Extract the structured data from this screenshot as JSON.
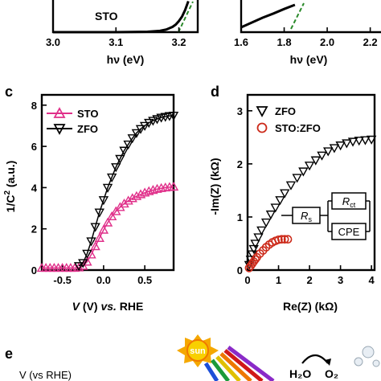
{
  "panel_labels": {
    "c": "c",
    "d": "d",
    "e": "e"
  },
  "colors": {
    "sto": "#e0308a",
    "zfo": "#000000",
    "stozfo": "#cc2a1a",
    "fit": "#2a8a2a"
  },
  "top_left": {
    "curve_label": "STO",
    "xlabel": "hν (eV)",
    "xticks": [
      "3.0",
      "3.1",
      "3.2"
    ]
  },
  "top_right": {
    "xlabel": "hν (eV)",
    "xticks": [
      "1.6",
      "1.8",
      "2.0",
      "2.2"
    ]
  },
  "panel_c": {
    "ylabel": "1/C² (a.u.)",
    "xlabel_italic": "V",
    "xlabel_rest": " (V) ",
    "xlabel_vs": "vs.",
    "xlabel_end": " RHE",
    "legend": [
      "STO",
      "ZFO"
    ],
    "xticks": [
      "-0.5",
      "0.0",
      "0.5"
    ],
    "yticks": [
      "0",
      "2",
      "4",
      "6",
      "8"
    ]
  },
  "panel_d": {
    "ylabel": "-Im(Z) (kΩ)",
    "xlabel": "Re(Z) (kΩ)",
    "legend": [
      "ZFO",
      "STO:ZFO"
    ],
    "xticks": [
      "0",
      "1",
      "2",
      "3",
      "4"
    ],
    "yticks": [
      "0",
      "1",
      "2",
      "3"
    ],
    "circuit": {
      "rs": "R",
      "rs_sub": "s",
      "rct": "R",
      "rct_sub": "ct",
      "cpe": "CPE"
    }
  },
  "panel_e": {
    "axis_text": "V (vs RHE)",
    "sun_label": "sun",
    "h2o": "H₂O",
    "o2": "O₂"
  },
  "chart_data": [
    {
      "type": "line",
      "panel": "top-left (partial)",
      "xlabel": "hν (eV)",
      "xlim": [
        3.0,
        3.23
      ],
      "series": [
        {
          "name": "STO",
          "x": [
            3.0,
            3.05,
            3.1,
            3.15,
            3.17,
            3.18,
            3.19,
            3.195,
            3.2,
            3.205,
            3.21,
            3.215
          ],
          "y": [
            0.0,
            0.0,
            0.0,
            0.01,
            0.03,
            0.06,
            0.12,
            0.17,
            0.25,
            0.35,
            0.5,
            0.7
          ]
        }
      ]
    },
    {
      "type": "line",
      "panel": "top-right (partial)",
      "xlabel": "hν (eV)",
      "xlim": [
        1.6,
        2.25
      ],
      "series": [
        {
          "x": [
            1.6,
            1.65,
            1.7,
            1.75,
            1.8,
            1.85
          ],
          "y": [
            0.15,
            0.3,
            0.45,
            0.58,
            0.72,
            0.85
          ]
        }
      ]
    },
    {
      "type": "scatter",
      "panel": "c",
      "xlabel": "V (V) vs. RHE",
      "ylabel": "1/C² (a.u.)",
      "xlim": [
        -0.75,
        0.85
      ],
      "ylim": [
        0,
        8.5
      ],
      "series": [
        {
          "name": "STO",
          "x": [
            -0.75,
            -0.7,
            -0.65,
            -0.6,
            -0.55,
            -0.5,
            -0.45,
            -0.4,
            -0.35,
            -0.3,
            -0.25,
            -0.2,
            -0.15,
            -0.1,
            -0.05,
            0.0,
            0.05,
            0.1,
            0.15,
            0.2,
            0.25,
            0.3,
            0.35,
            0.4,
            0.45,
            0.5,
            0.55,
            0.6,
            0.65,
            0.7,
            0.75,
            0.8,
            0.85
          ],
          "y": [
            0.1,
            0.1,
            0.1,
            0.1,
            0.1,
            0.1,
            0.1,
            0.1,
            0.1,
            0.12,
            0.2,
            0.4,
            0.75,
            1.15,
            1.55,
            1.95,
            2.3,
            2.6,
            2.85,
            3.05,
            3.22,
            3.36,
            3.48,
            3.58,
            3.67,
            3.75,
            3.82,
            3.88,
            3.93,
            3.97,
            4.0,
            4.02,
            4.04
          ]
        },
        {
          "name": "ZFO",
          "x": [
            -0.3,
            -0.25,
            -0.2,
            -0.15,
            -0.1,
            -0.05,
            0.0,
            0.05,
            0.1,
            0.15,
            0.2,
            0.25,
            0.3,
            0.35,
            0.4,
            0.45,
            0.5,
            0.55,
            0.6,
            0.65,
            0.7,
            0.75,
            0.8,
            0.85
          ],
          "y": [
            0.2,
            0.35,
            0.8,
            1.4,
            2.1,
            2.8,
            3.4,
            4.0,
            4.5,
            5.0,
            5.4,
            5.8,
            6.1,
            6.4,
            6.65,
            6.85,
            7.0,
            7.15,
            7.25,
            7.33,
            7.4,
            7.44,
            7.48,
            7.5
          ]
        }
      ]
    },
    {
      "type": "scatter",
      "panel": "d",
      "xlabel": "Re(Z) (kΩ)",
      "ylabel": "-Im(Z) (kΩ)",
      "xlim": [
        0,
        4.1
      ],
      "ylim": [
        0,
        3.3
      ],
      "series": [
        {
          "name": "ZFO",
          "x": [
            0.05,
            0.1,
            0.15,
            0.2,
            0.25,
            0.35,
            0.45,
            0.6,
            0.75,
            0.9,
            1.05,
            1.2,
            1.4,
            1.6,
            1.8,
            2.0,
            2.2,
            2.4,
            2.6,
            2.8,
            3.0,
            3.2,
            3.4,
            3.6,
            3.8,
            4.0
          ],
          "y": [
            0.1,
            0.2,
            0.3,
            0.4,
            0.5,
            0.62,
            0.75,
            0.9,
            1.05,
            1.18,
            1.32,
            1.45,
            1.6,
            1.74,
            1.86,
            1.97,
            2.07,
            2.16,
            2.24,
            2.3,
            2.35,
            2.39,
            2.42,
            2.44,
            2.45,
            2.46
          ]
        },
        {
          "name": "STO:ZFO",
          "x": [
            0.05,
            0.1,
            0.15,
            0.2,
            0.25,
            0.3,
            0.4,
            0.5,
            0.6,
            0.7,
            0.8,
            0.9,
            1.0,
            1.1,
            1.2,
            1.3
          ],
          "y": [
            0.04,
            0.08,
            0.12,
            0.16,
            0.2,
            0.24,
            0.31,
            0.37,
            0.43,
            0.48,
            0.52,
            0.55,
            0.57,
            0.58,
            0.58,
            0.58
          ]
        }
      ]
    }
  ]
}
